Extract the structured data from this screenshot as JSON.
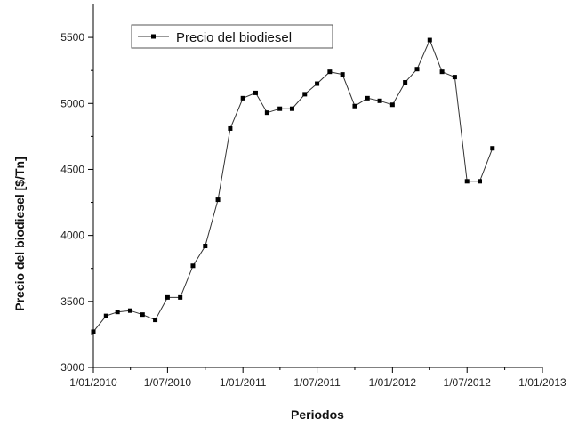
{
  "chart_data": {
    "type": "line",
    "xlabel": "Periodos",
    "ylabel": "Precio del biodiesel [$/Tn]",
    "xlim": [
      "2010-01-01",
      "2013-01-01"
    ],
    "ylim": [
      3000,
      5750
    ],
    "x_ticks": [
      "1/01/2010",
      "1/07/2010",
      "1/01/2011",
      "1/07/2011",
      "1/01/2012",
      "1/07/2012",
      "1/01/2013"
    ],
    "x_tick_dates": [
      "2010-01-01",
      "2010-07-01",
      "2011-01-01",
      "2011-07-01",
      "2012-01-01",
      "2012-07-01",
      "2013-01-01"
    ],
    "y_ticks": [
      3000,
      3500,
      4000,
      4500,
      5000,
      5500
    ],
    "legend_position": "top-left",
    "grid": false,
    "series": [
      {
        "name": "Precio del biodiesel",
        "color": "#000000",
        "marker": "square",
        "x": [
          "2010-01-01",
          "2010-02-01",
          "2010-03-01",
          "2010-04-01",
          "2010-05-01",
          "2010-06-01",
          "2010-07-01",
          "2010-08-01",
          "2010-09-01",
          "2010-10-01",
          "2010-11-01",
          "2010-12-01",
          "2011-01-01",
          "2011-02-01",
          "2011-03-01",
          "2011-04-01",
          "2011-05-01",
          "2011-06-01",
          "2011-07-01",
          "2011-08-01",
          "2011-09-01",
          "2011-10-01",
          "2011-11-01",
          "2011-12-01",
          "2012-01-01",
          "2012-02-01",
          "2012-03-01",
          "2012-04-01",
          "2012-05-01",
          "2012-06-01",
          "2012-07-01",
          "2012-08-01",
          "2012-09-01",
          "2012-10-01"
        ],
        "values": [
          3270,
          3390,
          3420,
          3430,
          3400,
          3360,
          3530,
          3530,
          3770,
          3920,
          4270,
          4810,
          5040,
          5080,
          4930,
          4960,
          4960,
          5070,
          5150,
          5240,
          5220,
          4980,
          5040,
          5020,
          4990,
          5160,
          5260,
          5480,
          5240,
          5200,
          4410,
          4410,
          4660,
          null
        ]
      }
    ]
  }
}
